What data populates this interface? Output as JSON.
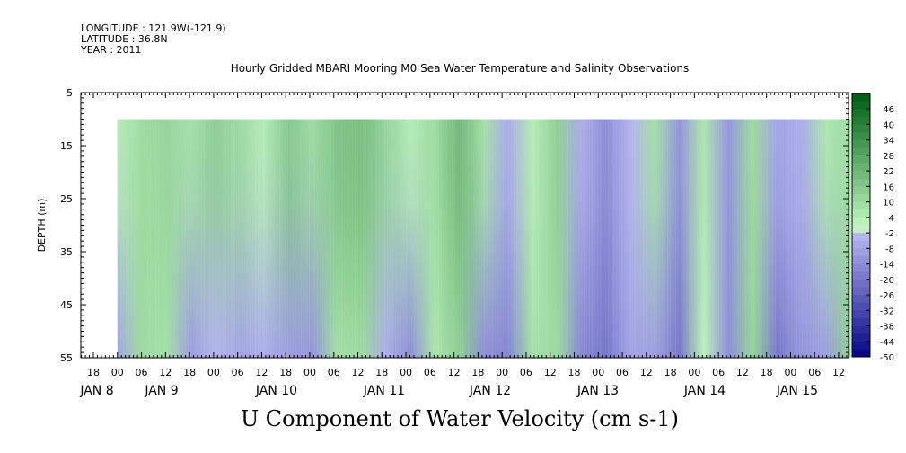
{
  "header": {
    "longitude": "LONGITUDE : 121.9W(-121.9)",
    "latitude": "LATITUDE : 36.8N",
    "year": "YEAR : 2011"
  },
  "chart_data": {
    "type": "heatmap",
    "title": "Hourly Gridded MBARI Mooring M0 Sea Water Temperature and Salinity Observations",
    "xlabel": "U Component of Water Velocity (cm s-1)",
    "ylabel": "DEPTH (m)",
    "ylim": [
      5,
      55
    ],
    "y_inverted": true,
    "y_ticks": [
      5,
      15,
      25,
      35,
      45,
      55
    ],
    "x_hour_ticks": [
      "18",
      "00",
      "06",
      "12",
      "18",
      "00",
      "06",
      "12",
      "18",
      "00",
      "06",
      "12",
      "18",
      "00",
      "06",
      "12",
      "18",
      "00",
      "06",
      "12",
      "18",
      "00",
      "06",
      "12",
      "18",
      "00",
      "06",
      "12",
      "18",
      "00",
      "06",
      "12"
    ],
    "x_day_labels": [
      "JAN  8",
      "JAN  9",
      "JAN 10",
      "JAN 11",
      "JAN 12",
      "JAN 13",
      "JAN 14",
      "JAN 15"
    ],
    "data_range": {
      "start": "JAN 8 00",
      "end": "JAN 15 15",
      "depth_top": 10,
      "depth_bottom": 55
    },
    "colorbar": {
      "levels": [
        46,
        40,
        34,
        28,
        22,
        16,
        10,
        4,
        -2,
        -8,
        -14,
        -20,
        -26,
        -32,
        -38,
        -44,
        -50
      ],
      "vmin": -50,
      "vmax": 52
    },
    "u_velocity_profile": [
      {
        "time": "JAN 8 00",
        "top": 4,
        "bottom": -8
      },
      {
        "time": "JAN 8 06",
        "top": 10,
        "bottom": 10
      },
      {
        "time": "JAN 8 12",
        "top": 12,
        "bottom": 8
      },
      {
        "time": "JAN 8 18",
        "top": 8,
        "bottom": -10
      },
      {
        "time": "JAN 9 00",
        "top": 14,
        "bottom": -4
      },
      {
        "time": "JAN 9 06",
        "top": 10,
        "bottom": -8
      },
      {
        "time": "JAN 9 12",
        "top": 4,
        "bottom": -6
      },
      {
        "time": "JAN 9 18",
        "top": 16,
        "bottom": -10
      },
      {
        "time": "JAN 10 00",
        "top": 10,
        "bottom": -12
      },
      {
        "time": "JAN 10 06",
        "top": 18,
        "bottom": 8
      },
      {
        "time": "JAN 10 12",
        "top": 20,
        "bottom": 10
      },
      {
        "time": "JAN 10 18",
        "top": 12,
        "bottom": -6
      },
      {
        "time": "JAN 11 00",
        "top": 4,
        "bottom": -14
      },
      {
        "time": "JAN 11 06",
        "top": 10,
        "bottom": 6
      },
      {
        "time": "JAN 11 12",
        "top": 22,
        "bottom": 14
      },
      {
        "time": "JAN 11 18",
        "top": 8,
        "bottom": -14
      },
      {
        "time": "JAN 12 00",
        "top": -6,
        "bottom": -16
      },
      {
        "time": "JAN 12 06",
        "top": 4,
        "bottom": 8
      },
      {
        "time": "JAN 12 12",
        "top": 14,
        "bottom": 10
      },
      {
        "time": "JAN 12 18",
        "top": -6,
        "bottom": -16
      },
      {
        "time": "JAN 13 00",
        "top": -14,
        "bottom": -20
      },
      {
        "time": "JAN 13 06",
        "top": -4,
        "bottom": -8
      },
      {
        "time": "JAN 13 12",
        "top": 8,
        "bottom": -10
      },
      {
        "time": "JAN 13 18",
        "top": -12,
        "bottom": -20
      },
      {
        "time": "JAN 14 00",
        "top": 6,
        "bottom": 2
      },
      {
        "time": "JAN 14 06",
        "top": -12,
        "bottom": -14
      },
      {
        "time": "JAN 14 12",
        "top": 10,
        "bottom": 12
      },
      {
        "time": "JAN 14 18",
        "top": -8,
        "bottom": -20
      },
      {
        "time": "JAN 15 00",
        "top": -6,
        "bottom": -12
      },
      {
        "time": "JAN 15 06",
        "top": 6,
        "bottom": -10
      },
      {
        "time": "JAN 15 12",
        "top": 10,
        "bottom": 14
      }
    ]
  }
}
